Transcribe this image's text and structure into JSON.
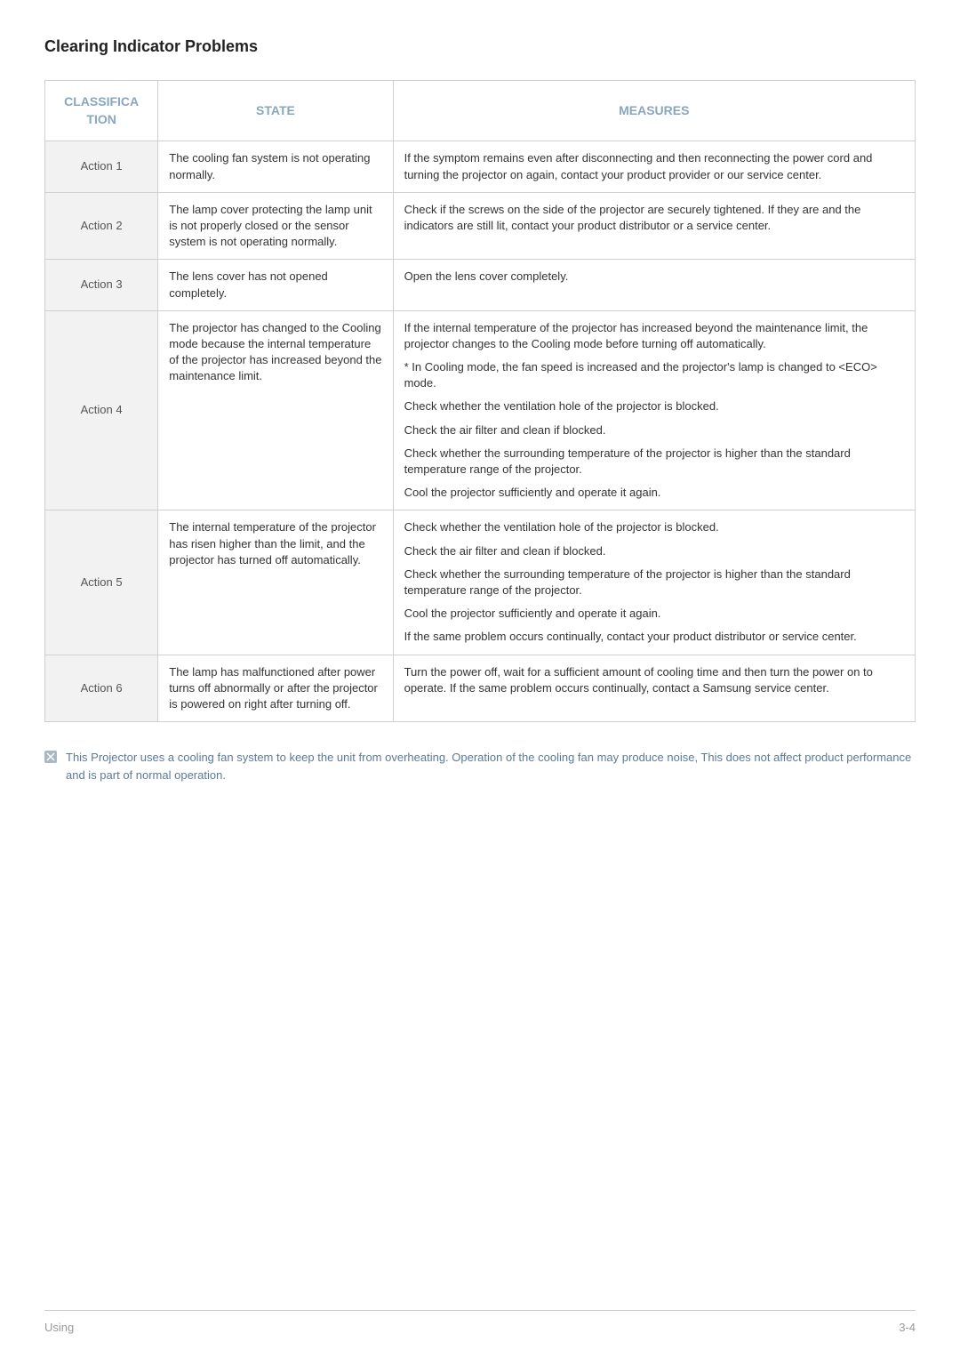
{
  "title": "Clearing Indicator Problems",
  "headers": {
    "classification": "CLASSIFICA\nTION",
    "state": "STATE",
    "measures": "MEASURES"
  },
  "rows": [
    {
      "action": "Action 1",
      "state": "The cooling fan system is not operating normally.",
      "measures": [
        "If the symptom remains even after disconnecting and then reconnecting the power cord and turning the projector on again, contact your product provider or our service center."
      ]
    },
    {
      "action": "Action 2",
      "state": "The lamp cover protecting the lamp unit is not properly closed or the sensor system is not operating normally.",
      "measures": [
        "Check if the screws on the side of the projector are securely tightened. If they are and the indicators are still lit, contact your product distributor or a service center."
      ]
    },
    {
      "action": "Action 3",
      "state": "The lens cover has not opened completely.",
      "measures": [
        "Open the lens cover completely."
      ]
    },
    {
      "action": "Action 4",
      "state": "The projector has changed to the Cooling mode because the internal temperature of the projector has increased beyond the maintenance limit.",
      "measures": [
        "If the internal temperature of the projector has increased beyond the maintenance limit, the projector changes to the Cooling mode before turning off automatically.",
        "* In Cooling mode, the fan speed is increased and the projector's lamp is changed to <ECO> mode.",
        "Check whether the ventilation hole of the projector is blocked.",
        "Check the air filter and clean if blocked.",
        "Check whether the surrounding temperature of the projector is higher than the standard temperature range of the projector.",
        "Cool the projector sufficiently and operate it again."
      ]
    },
    {
      "action": "Action 5",
      "state": "The internal temperature of the projector has risen higher than the limit, and the projector has turned off automatically.",
      "measures": [
        "Check whether the ventilation hole of the projector is blocked.",
        "Check the air filter and clean if blocked.",
        "Check whether the surrounding temperature of the projector is higher than the standard temperature range of the projector.",
        "Cool the projector sufficiently and operate it again.",
        "If the same problem occurs continually, contact your product distributor or service center."
      ]
    },
    {
      "action": "Action 6",
      "state": "The lamp has malfunctioned after power turns off abnormally or after the projector is powered on right after turning off.",
      "measures": [
        "Turn the power off, wait for a sufficient amount of cooling time and then turn the power on to operate. If the same problem occurs continually, contact a Samsung service center."
      ]
    }
  ],
  "note": "This Projector uses a cooling fan system to keep the unit from overheating. Operation of the cooling fan may produce noise, This does not affect product performance and is part of normal operation.",
  "footer": {
    "left": "Using",
    "right": "3-4"
  },
  "colors": {
    "header_text": "#8aa6bf",
    "action_bg": "#f2f2f2",
    "border": "#d0d0d0",
    "note_text": "#5b7a99",
    "note_icon_bg": "#a9b8c5",
    "footer_text": "#999999"
  }
}
